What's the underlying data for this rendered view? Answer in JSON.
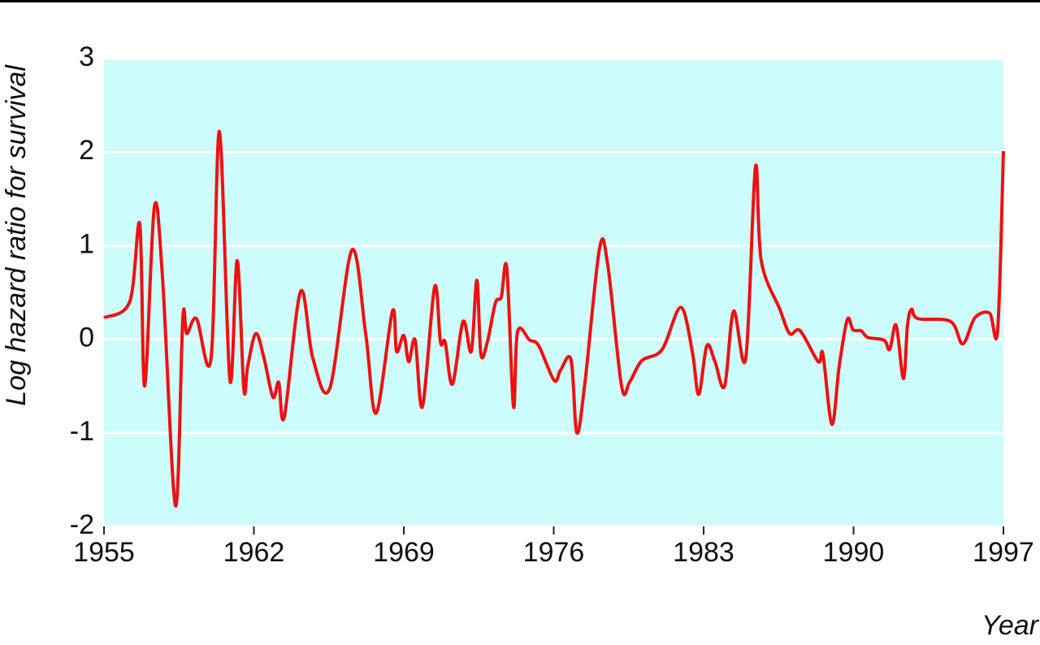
{
  "chart_data": {
    "type": "line",
    "x_label": "Year",
    "y_label": "Log hazard ratio for survival",
    "x": [
      1955.0,
      1956.2,
      1956.67,
      1956.9,
      1957.35,
      1957.73,
      1958.34,
      1958.68,
      1958.87,
      1959.32,
      1960.0,
      1960.39,
      1960.88,
      1961.22,
      1961.53,
      1961.71,
      1962.09,
      1962.47,
      1962.89,
      1963.16,
      1963.42,
      1964.18,
      1964.75,
      1965.55,
      1966.57,
      1967.22,
      1967.71,
      1968.47,
      1968.66,
      1969.0,
      1969.23,
      1969.53,
      1969.87,
      1970.44,
      1970.71,
      1970.93,
      1971.27,
      1971.77,
      1972.15,
      1972.41,
      1972.6,
      1972.9,
      1973.28,
      1973.55,
      1973.81,
      1974.12,
      1974.31,
      1974.88,
      1975.3,
      1976.02,
      1976.32,
      1976.81,
      1977.08,
      1977.46,
      1978.14,
      1978.52,
      1979.17,
      1979.54,
      1980.11,
      1981.06,
      1981.93,
      1982.47,
      1982.77,
      1983.15,
      1983.53,
      1983.98,
      1984.4,
      1984.97,
      1985.42,
      1985.69,
      1986.56,
      1987.02,
      1987.51,
      1988.35,
      1988.57,
      1988.99,
      1989.33,
      1989.71,
      1989.98,
      1990.36,
      1990.66,
      1991.42,
      1991.69,
      1991.99,
      1992.33,
      1992.52,
      1992.71,
      1993.01,
      1994.53,
      1995.1,
      1995.67,
      1996.35,
      1996.73,
      1997.0
    ],
    "series": [
      {
        "name": "Log hazard ratio",
        "color": "#ee1111",
        "values": [
          0.23,
          0.4,
          1.23,
          -0.5,
          1.41,
          0.67,
          -1.78,
          0.22,
          0.06,
          0.22,
          -0.2,
          2.22,
          -0.44,
          0.84,
          -0.53,
          -0.29,
          0.06,
          -0.2,
          -0.62,
          -0.46,
          -0.83,
          0.51,
          -0.2,
          -0.52,
          0.95,
          0.06,
          -0.79,
          0.3,
          -0.13,
          0.04,
          -0.24,
          -0.01,
          -0.72,
          0.56,
          -0.03,
          -0.03,
          -0.48,
          0.19,
          -0.13,
          0.63,
          -0.16,
          -0.03,
          0.39,
          0.45,
          0.76,
          -0.72,
          0.08,
          -0.01,
          -0.07,
          -0.44,
          -0.33,
          -0.22,
          -1.0,
          -0.46,
          0.97,
          0.8,
          -0.5,
          -0.46,
          -0.23,
          -0.11,
          0.34,
          -0.13,
          -0.59,
          -0.07,
          -0.24,
          -0.5,
          0.3,
          -0.2,
          1.84,
          0.84,
          0.32,
          0.06,
          0.09,
          -0.24,
          -0.16,
          -0.91,
          -0.29,
          0.21,
          0.1,
          0.09,
          0.02,
          -0.01,
          -0.11,
          0.15,
          -0.42,
          0.15,
          0.32,
          0.22,
          0.19,
          -0.05,
          0.23,
          0.28,
          0.1,
          2.01
        ]
      }
    ],
    "xlim": [
      1955,
      1997
    ],
    "xticks": [
      1955,
      1962,
      1969,
      1976,
      1983,
      1990,
      1997
    ],
    "ylim": [
      -2,
      3
    ],
    "yticks": [
      -2,
      -1,
      0,
      1,
      2,
      3
    ],
    "grid": true,
    "background": "#cdfcfc"
  }
}
